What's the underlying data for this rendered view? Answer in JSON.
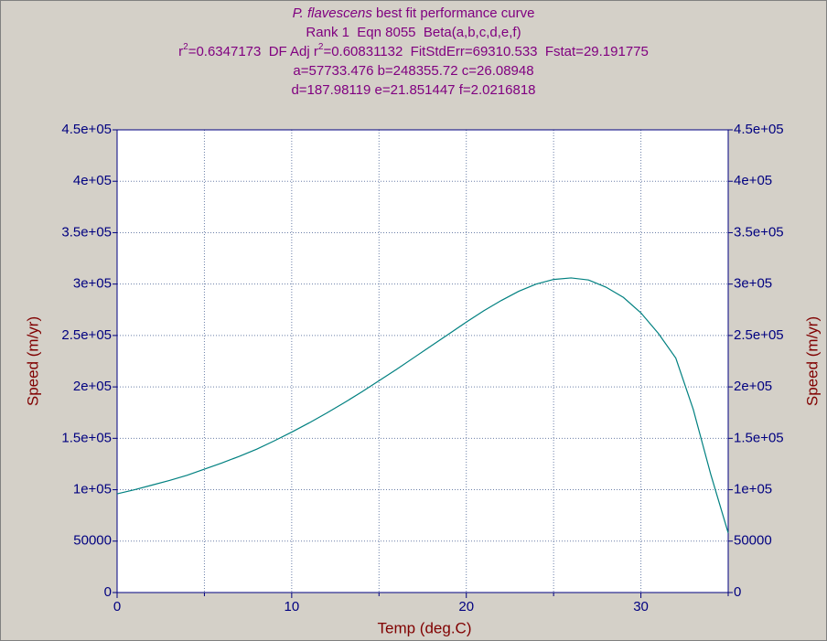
{
  "chart_data": {
    "type": "line",
    "title_lines": [
      [
        {
          "text": "P. flavescens",
          "style": "italic"
        },
        {
          "text": " best fit performance curve"
        }
      ],
      [
        {
          "text": "Rank 1  Eqn 8055  Beta(a,b,c,d,e,f)"
        }
      ],
      [
        {
          "text": "r"
        },
        {
          "text": "2",
          "style": "sup"
        },
        {
          "text": "=0.6347173  DF Adj r"
        },
        {
          "text": "2",
          "style": "sup"
        },
        {
          "text": "=0.60831132  FitStdErr=69310.533  Fstat=29.191775"
        }
      ],
      [
        {
          "text": "a=57733.476 b=248355.72 c=26.08948"
        }
      ],
      [
        {
          "text": "d=187.98119 e=21.851447 f=2.0216818"
        }
      ]
    ],
    "x_label": "Temp (deg.C)",
    "y_label": "Speed (m/yr)",
    "y2_label": "Speed (m/yr)",
    "x": [
      0,
      1,
      2,
      3,
      4,
      5,
      6,
      7,
      8,
      9,
      10,
      11,
      12,
      13,
      14,
      15,
      16,
      17,
      18,
      19,
      20,
      21,
      22,
      23,
      24,
      25,
      26,
      27,
      28,
      29,
      30,
      31,
      32,
      33,
      34,
      35
    ],
    "series": [
      {
        "color": "#008080",
        "values": [
          96000,
          100000,
          104500,
          109000,
          114000,
          120000,
          126000,
          132500,
          139500,
          147500,
          156000,
          165000,
          174500,
          184500,
          195000,
          206000,
          217000,
          228500,
          240000,
          251500,
          263000,
          274000,
          284000,
          293000,
          300000,
          304500,
          306000,
          304000,
          297000,
          287000,
          272000,
          252000,
          228000,
          178000,
          115000,
          58000
        ]
      }
    ],
    "xlim": [
      0,
      35
    ],
    "xticks": [
      0,
      10,
      20,
      30
    ],
    "x_minor_ticks": [
      5,
      15,
      25,
      35
    ],
    "ylim": [
      0,
      450000
    ],
    "yticks": [
      0,
      50000,
      {
        "value": 100000,
        "label": "1e+05"
      },
      {
        "value": 150000,
        "label": "1.5e+05"
      },
      {
        "value": 200000,
        "label": "2e+05"
      },
      {
        "value": 250000,
        "label": "2.5e+05"
      },
      {
        "value": 300000,
        "label": "3e+05"
      },
      {
        "value": 350000,
        "label": "3.5e+05"
      },
      {
        "value": 400000,
        "label": "4e+05"
      },
      {
        "value": 450000,
        "label": "4.5e+05"
      }
    ],
    "grid": true
  }
}
